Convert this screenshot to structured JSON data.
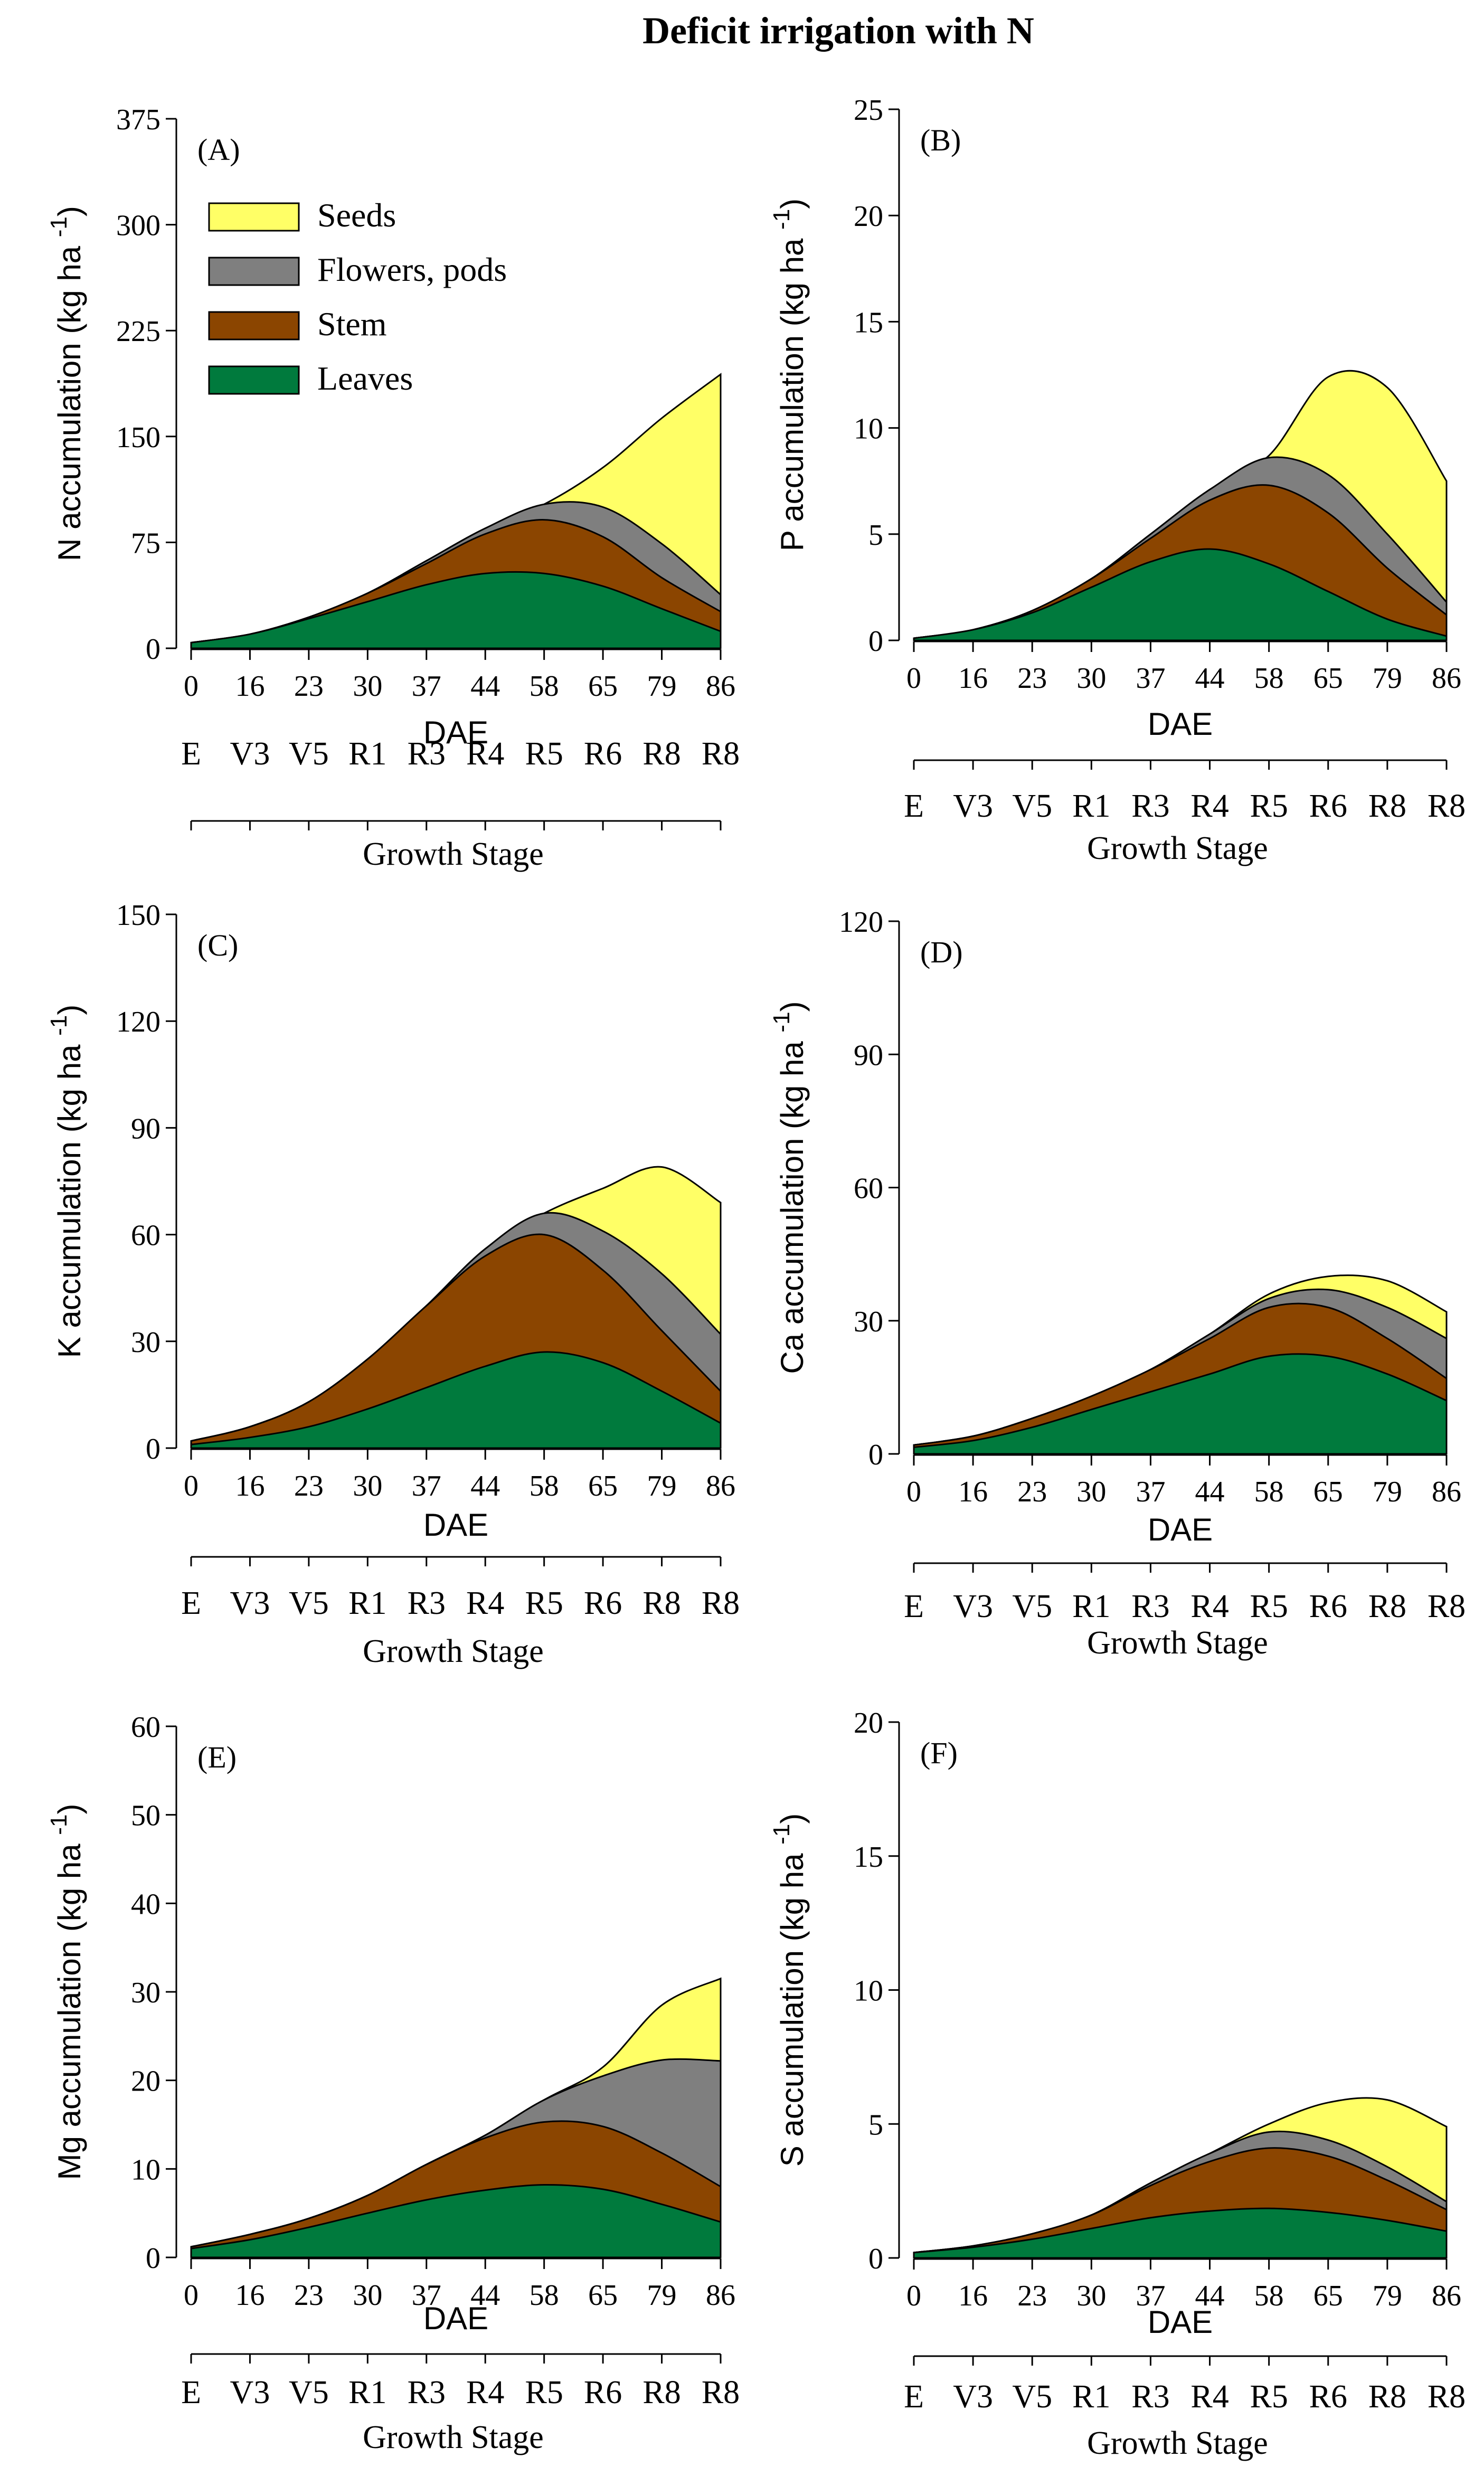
{
  "figure_title": "Deficit irrigation with N",
  "legend": [
    {
      "label": "Seeds",
      "color": "#ffff66"
    },
    {
      "label": "Flowers, pods",
      "color": "#7f7f7f"
    },
    {
      "label": "Stem",
      "color": "#8b4500"
    },
    {
      "label": "Leaves",
      "color": "#007a3d"
    }
  ],
  "x_axis": {
    "ticks": [
      "0",
      "16",
      "23",
      "30",
      "37",
      "44",
      "58",
      "65",
      "79",
      "86"
    ],
    "label": "DAE",
    "stages": [
      "E",
      "V3",
      "V5",
      "R1",
      "R3",
      "R4",
      "R5",
      "R6",
      "R8",
      "R8"
    ],
    "stage_label": "Growth Stage"
  },
  "chart_data": [
    {
      "type": "area",
      "panel": "(A)",
      "nutrient": "N",
      "ylabel_suffix": "accumulation (kg ha",
      "ylabel_exp": "-1",
      "ylabel_close": ")",
      "ylim": [
        0,
        375
      ],
      "yticks": [
        0,
        75,
        150,
        225,
        300,
        375
      ],
      "x": [
        "0",
        "16",
        "23",
        "30",
        "37",
        "44",
        "58",
        "65",
        "79",
        "86"
      ],
      "series": [
        {
          "name": "Leaves",
          "values": [
            4,
            10,
            21,
            33,
            45,
            53,
            53,
            44,
            28,
            12
          ]
        },
        {
          "name": "Stem",
          "values": [
            4,
            10,
            22,
            39,
            60,
            81,
            91,
            79,
            50,
            26
          ]
        },
        {
          "name": "Flowers, pods",
          "values": [
            4,
            10,
            22,
            39,
            62,
            85,
            102,
            100,
            74,
            38
          ]
        },
        {
          "name": "Seeds",
          "values": [
            4,
            10,
            22,
            39,
            62,
            85,
            102,
            128,
            163,
            194
          ]
        }
      ]
    },
    {
      "type": "area",
      "panel": "(B)",
      "nutrient": "P",
      "ylabel_suffix": "accumulation (kg ha",
      "ylabel_exp": "-1",
      "ylabel_close": ")",
      "ylim": [
        0,
        25
      ],
      "yticks": [
        0,
        5,
        10,
        15,
        20,
        25
      ],
      "x": [
        "0",
        "16",
        "23",
        "30",
        "37",
        "44",
        "58",
        "65",
        "79",
        "86"
      ],
      "series": [
        {
          "name": "Leaves",
          "values": [
            0.1,
            0.5,
            1.3,
            2.5,
            3.7,
            4.3,
            3.6,
            2.3,
            1.0,
            0.2
          ]
        },
        {
          "name": "Stem",
          "values": [
            0.1,
            0.5,
            1.4,
            2.9,
            4.8,
            6.6,
            7.3,
            6.0,
            3.4,
            1.2
          ]
        },
        {
          "name": "Flowers, pods",
          "values": [
            0.1,
            0.5,
            1.4,
            2.9,
            5.0,
            7.1,
            8.6,
            7.8,
            5.0,
            1.8
          ]
        },
        {
          "name": "Seeds",
          "values": [
            0.1,
            0.5,
            1.4,
            2.9,
            5.0,
            7.1,
            8.7,
            12.4,
            11.9,
            7.5
          ]
        }
      ]
    },
    {
      "type": "area",
      "panel": "(C)",
      "nutrient": "K",
      "ylabel_suffix": "accumulation (kg ha",
      "ylabel_exp": "-1",
      "ylabel_close": ")",
      "ylim": [
        0,
        150
      ],
      "yticks": [
        0,
        30,
        60,
        90,
        120,
        150
      ],
      "x": [
        "0",
        "16",
        "23",
        "30",
        "37",
        "44",
        "58",
        "65",
        "79",
        "86"
      ],
      "series": [
        {
          "name": "Leaves",
          "values": [
            1,
            3,
            6,
            11,
            17,
            23,
            27,
            24,
            16,
            7
          ]
        },
        {
          "name": "Stem",
          "values": [
            2,
            6,
            13,
            25,
            40,
            54,
            60,
            50,
            33,
            16
          ]
        },
        {
          "name": "Flowers, pods",
          "values": [
            2,
            6,
            13,
            25,
            40,
            56,
            66,
            61,
            49,
            32
          ]
        },
        {
          "name": "Seeds",
          "values": [
            2,
            6,
            13,
            25,
            40,
            56,
            66,
            73,
            79,
            69
          ]
        }
      ]
    },
    {
      "type": "area",
      "panel": "(D)",
      "nutrient": "Ca",
      "ylabel_suffix": "accumulation (kg ha",
      "ylabel_exp": "-1",
      "ylabel_close": ")",
      "ylim": [
        0,
        120
      ],
      "yticks": [
        0,
        30,
        60,
        90,
        120
      ],
      "x": [
        "0",
        "16",
        "23",
        "30",
        "37",
        "44",
        "58",
        "65",
        "79",
        "86"
      ],
      "series": [
        {
          "name": "Leaves",
          "values": [
            1.5,
            3,
            6,
            10,
            14,
            18,
            22,
            22,
            18,
            12
          ]
        },
        {
          "name": "Stem",
          "values": [
            2,
            4,
            8,
            13,
            19,
            26,
            33,
            33,
            26,
            17
          ]
        },
        {
          "name": "Flowers, pods",
          "values": [
            2,
            4,
            8,
            13,
            19,
            27,
            35,
            37,
            33,
            26
          ]
        },
        {
          "name": "Seeds",
          "values": [
            2,
            4,
            8,
            13,
            19,
            27,
            36,
            40,
            39,
            32
          ]
        }
      ]
    },
    {
      "type": "area",
      "panel": "(E)",
      "nutrient": "Mg",
      "ylabel_suffix": "accumulation (kg ha",
      "ylabel_exp": "-1",
      "ylabel_close": ")",
      "ylim": [
        0,
        60
      ],
      "yticks": [
        0,
        10,
        20,
        30,
        40,
        50,
        60
      ],
      "x": [
        "0",
        "16",
        "23",
        "30",
        "37",
        "44",
        "58",
        "65",
        "79",
        "86"
      ],
      "series": [
        {
          "name": "Leaves",
          "values": [
            1,
            2,
            3.4,
            5,
            6.5,
            7.6,
            8.2,
            7.7,
            6,
            4
          ]
        },
        {
          "name": "Stem",
          "values": [
            1.2,
            2.6,
            4.4,
            7,
            10.5,
            13.5,
            15.3,
            14.8,
            11.8,
            8
          ]
        },
        {
          "name": "Flowers, pods",
          "values": [
            1.2,
            2.6,
            4.4,
            7,
            10.5,
            13.8,
            17.8,
            20.5,
            22.3,
            22.2
          ]
        },
        {
          "name": "Seeds",
          "values": [
            1.2,
            2.6,
            4.4,
            7,
            10.5,
            13.8,
            17.8,
            21.5,
            28.5,
            31.5
          ]
        }
      ]
    },
    {
      "type": "area",
      "panel": "(F)",
      "nutrient": "S",
      "ylabel_suffix": "accumulation (kg ha",
      "ylabel_exp": "-1",
      "ylabel_close": ")",
      "ylim": [
        0,
        20
      ],
      "yticks": [
        0,
        5,
        10,
        15,
        20
      ],
      "x": [
        "0",
        "16",
        "23",
        "30",
        "37",
        "44",
        "58",
        "65",
        "79",
        "86"
      ],
      "series": [
        {
          "name": "Leaves",
          "values": [
            0.2,
            0.4,
            0.7,
            1.1,
            1.5,
            1.75,
            1.85,
            1.7,
            1.4,
            1.0
          ]
        },
        {
          "name": "Stem",
          "values": [
            0.2,
            0.45,
            0.9,
            1.6,
            2.7,
            3.6,
            4.1,
            3.8,
            2.9,
            1.8
          ]
        },
        {
          "name": "Flowers, pods",
          "values": [
            0.2,
            0.45,
            0.9,
            1.6,
            2.8,
            3.9,
            4.7,
            4.4,
            3.4,
            2.1
          ]
        },
        {
          "name": "Seeds",
          "values": [
            0.2,
            0.45,
            0.9,
            1.6,
            2.8,
            3.9,
            5.0,
            5.8,
            5.9,
            4.9
          ]
        }
      ]
    }
  ]
}
